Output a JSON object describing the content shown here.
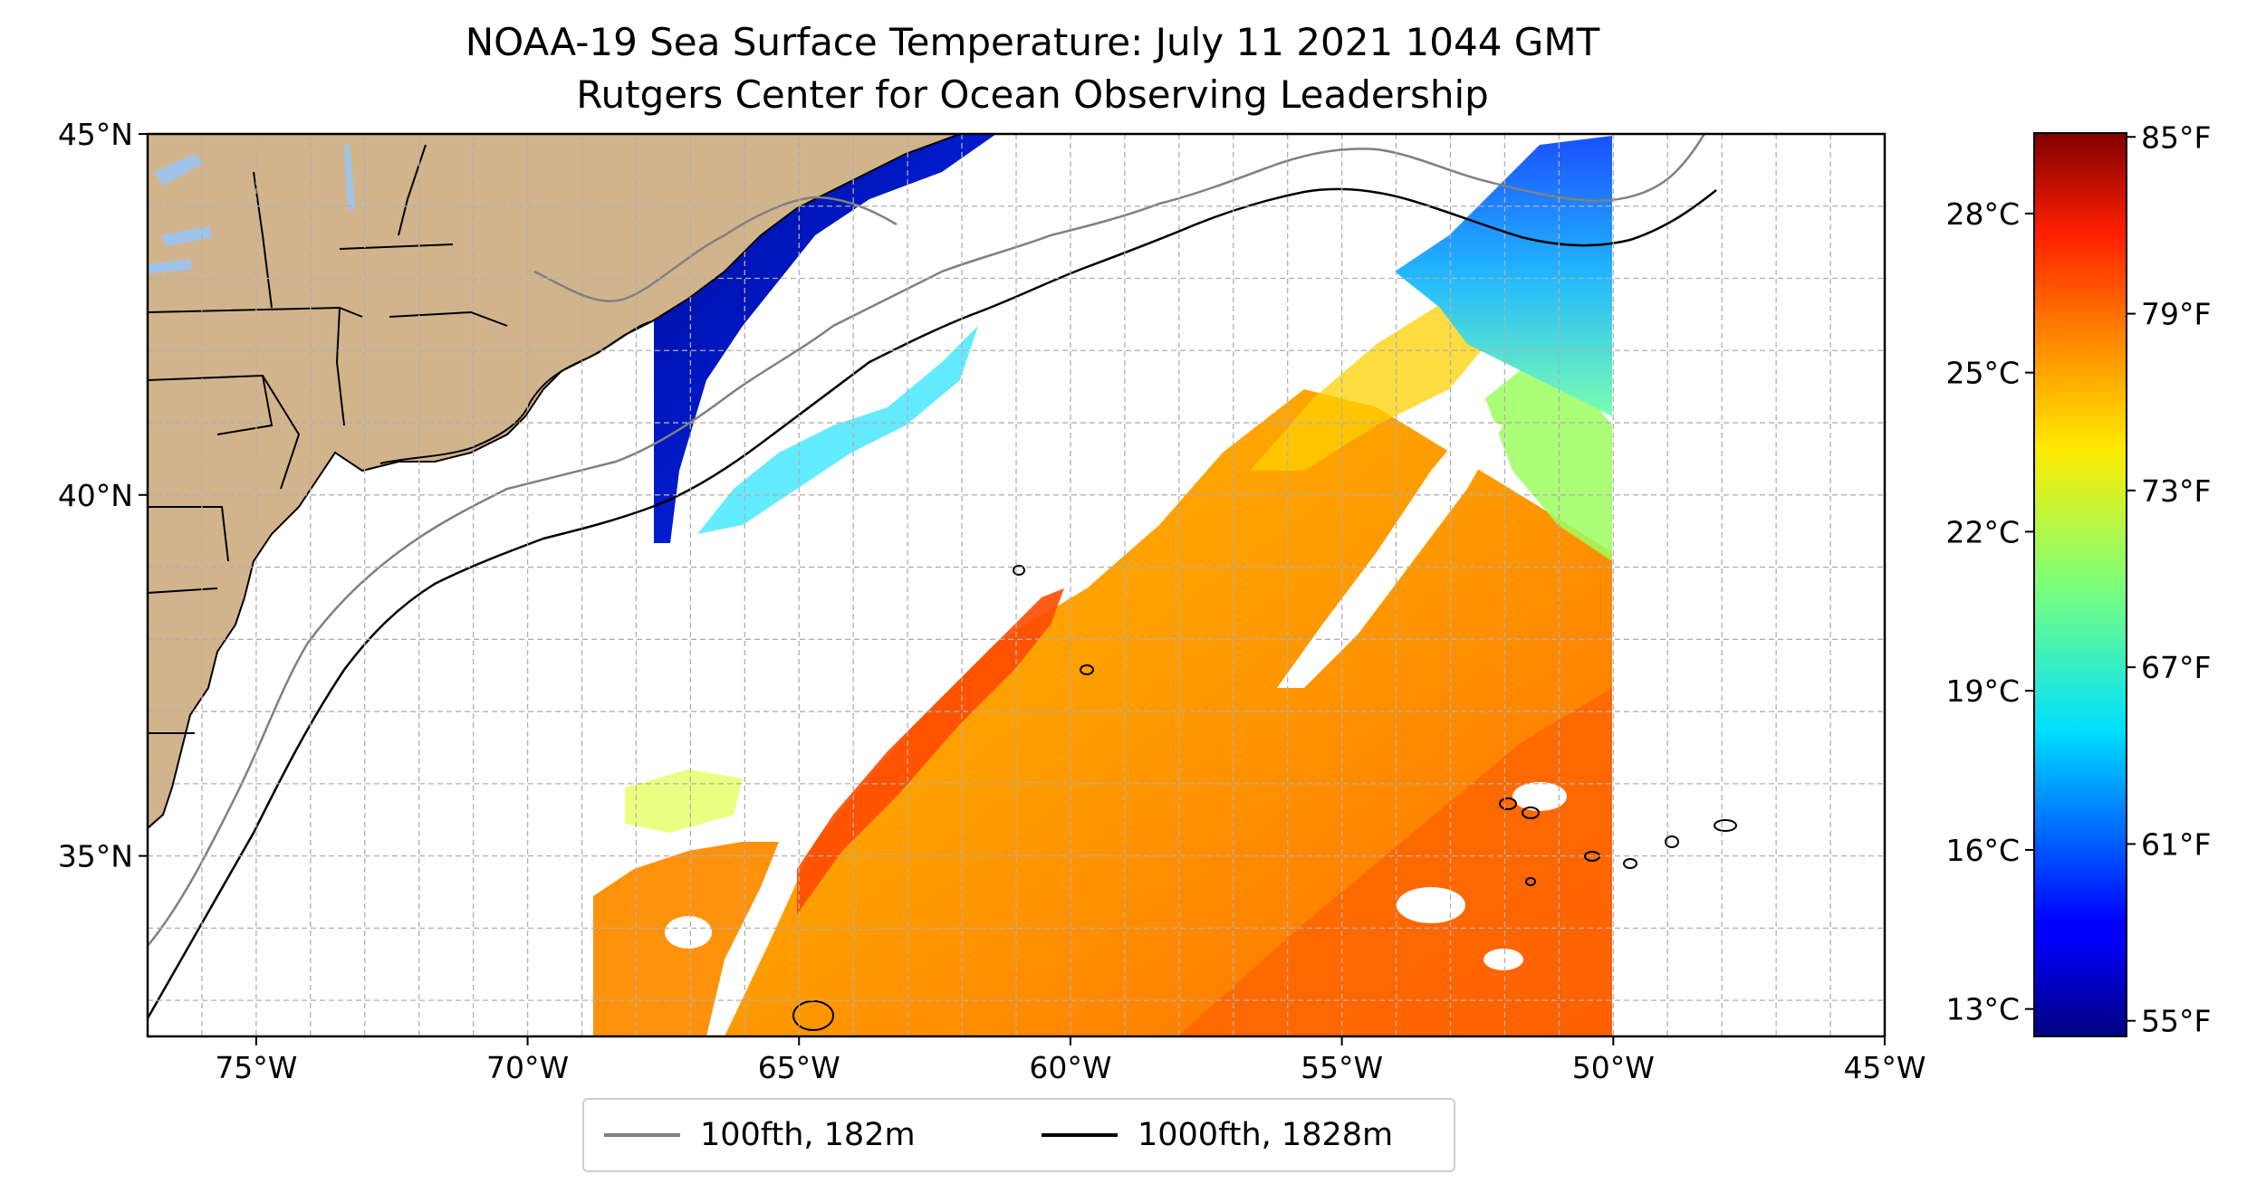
{
  "title": {
    "line1": "NOAA-19 Sea Surface Temperature: July 11 2021 1044 GMT",
    "line2": "Rutgers Center for Ocean Observing Leadership"
  },
  "map": {
    "lon_range": [
      -77,
      -45
    ],
    "lat_range": [
      32.5,
      45
    ],
    "x_ticks": [
      {
        "lon": -75,
        "label": "75°W"
      },
      {
        "lon": -70,
        "label": "70°W"
      },
      {
        "lon": -65,
        "label": "65°W"
      },
      {
        "lon": -60,
        "label": "60°W"
      },
      {
        "lon": -55,
        "label": "55°W"
      },
      {
        "lon": -50,
        "label": "50°W"
      },
      {
        "lon": -45,
        "label": "45°W"
      }
    ],
    "y_ticks": [
      {
        "lat": 45,
        "label": "45°N"
      },
      {
        "lat": 40,
        "label": "40°N"
      },
      {
        "lat": 35,
        "label": "35°N"
      }
    ],
    "gridlines": true,
    "land_color": "#d2b48c",
    "lake_color": "#9fc3e8"
  },
  "legend": {
    "placement": "bottom-center",
    "items": [
      {
        "label": "100fth, 182m",
        "color": "#808080"
      },
      {
        "label": "1000fth, 1828m",
        "color": "#000000"
      }
    ]
  },
  "colorbar": {
    "colormap": "jet",
    "range_c": [
      12.5,
      29.5
    ],
    "celsius_ticks": [
      {
        "value": 13,
        "label": "13°C"
      },
      {
        "value": 16,
        "label": "16°C"
      },
      {
        "value": 19,
        "label": "19°C"
      },
      {
        "value": 22,
        "label": "22°C"
      },
      {
        "value": 25,
        "label": "25°C"
      },
      {
        "value": 28,
        "label": "28°C"
      }
    ],
    "fahrenheit_ticks": [
      {
        "value": 55,
        "label": "55°F"
      },
      {
        "value": 61,
        "label": "61°F"
      },
      {
        "value": 67,
        "label": "67°F"
      },
      {
        "value": 73,
        "label": "73°F"
      },
      {
        "value": 79,
        "label": "79°F"
      },
      {
        "value": 85,
        "label": "85°F"
      }
    ]
  }
}
